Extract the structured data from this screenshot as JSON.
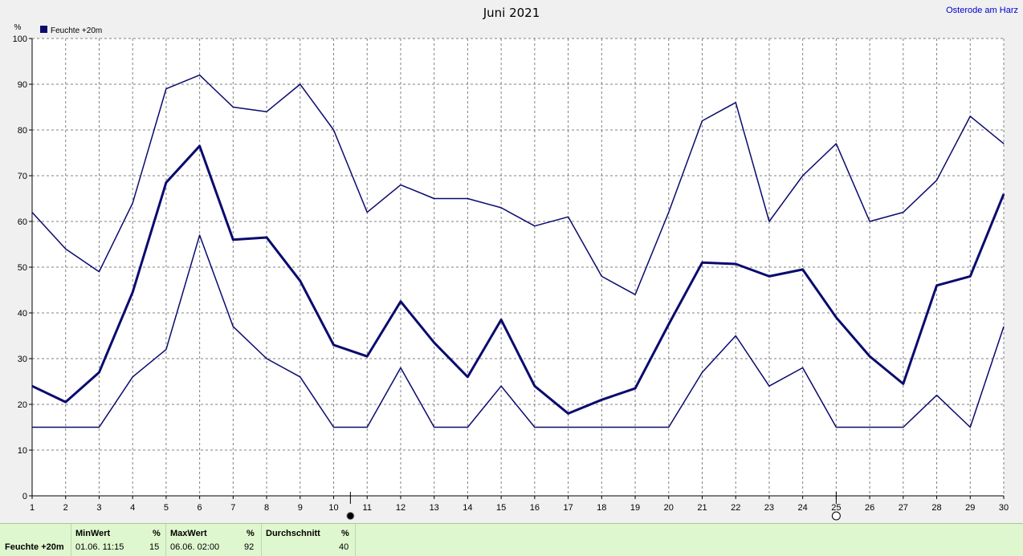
{
  "header": {
    "title": "Juni 2021",
    "location": "Osterode am Harz"
  },
  "colors": {
    "series": "#0a0a6e",
    "background": "#ffffff",
    "grid": "#808080",
    "stats_background": "#dff7cf"
  },
  "chart_data": {
    "type": "line",
    "title": "Juni 2021",
    "ylabel": "%",
    "xlabel": "",
    "ylim": [
      0,
      100
    ],
    "yticks": [
      0,
      10,
      20,
      30,
      40,
      50,
      60,
      70,
      80,
      90,
      100
    ],
    "x": [
      1,
      2,
      3,
      4,
      5,
      6,
      7,
      8,
      9,
      10,
      11,
      12,
      13,
      14,
      15,
      16,
      17,
      18,
      19,
      20,
      21,
      22,
      23,
      24,
      25,
      26,
      27,
      28,
      29,
      30
    ],
    "legend": {
      "label": "Feuchte +20m",
      "position": "top-left"
    },
    "grid": true,
    "series": [
      {
        "role": "max",
        "line": "thin",
        "values": [
          62,
          54,
          49,
          64,
          89,
          92,
          85,
          84,
          90,
          80,
          62,
          68,
          65,
          65,
          63,
          59,
          61,
          48,
          44,
          62,
          82,
          86,
          60,
          70,
          77,
          60,
          62,
          69,
          83,
          77
        ]
      },
      {
        "role": "mean",
        "line": "thick",
        "values": [
          24,
          20.5,
          27,
          44.5,
          68.5,
          76.5,
          56,
          56.5,
          47,
          33,
          30.5,
          42.5,
          33.5,
          26,
          38.5,
          24,
          18,
          21,
          23.5,
          37.5,
          51,
          50.7,
          48,
          49.5,
          39,
          30.5,
          24.5,
          46,
          48,
          66
        ]
      },
      {
        "role": "min",
        "line": "thin",
        "values": [
          15,
          15,
          15,
          26,
          32,
          57,
          37,
          30,
          26,
          15,
          15,
          28,
          15,
          15,
          24,
          15,
          15,
          15,
          15,
          15,
          27,
          35,
          24,
          28,
          15,
          15,
          15,
          22,
          15,
          37
        ]
      }
    ],
    "markers": [
      {
        "x": 10.5,
        "symbol": "filled-circle"
      },
      {
        "x": 25,
        "symbol": "open-circle"
      }
    ]
  },
  "stats": {
    "series_label": "Feuchte +20m",
    "min": {
      "header": "MinWert",
      "unit": "%",
      "time": "01.06.  11:15",
      "value": "15"
    },
    "max": {
      "header": "MaxWert",
      "unit": "%",
      "time": "06.06.  02:00",
      "value": "92"
    },
    "avg": {
      "header": "Durchschnitt",
      "unit": "%",
      "value": "40"
    }
  }
}
